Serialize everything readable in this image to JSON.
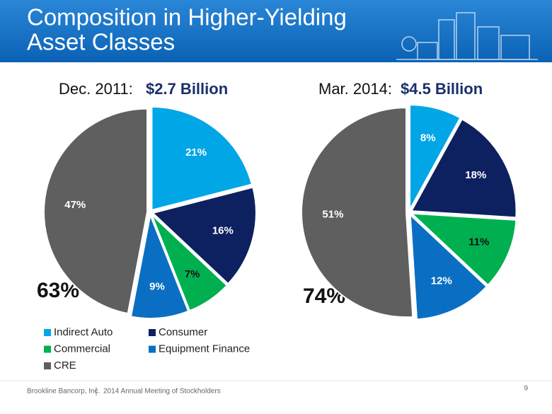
{
  "header": {
    "title_lines": [
      "Composition in Higher-Yielding",
      "Asset Classes"
    ]
  },
  "chart_data": [
    {
      "type": "pie",
      "period": "Dec. 2011:",
      "total": "$2.7 Billion",
      "categories": [
        "Indirect Auto",
        "Consumer",
        "Commercial",
        "Equipment Finance",
        "CRE"
      ],
      "values": [
        21,
        16,
        7,
        9,
        47
      ],
      "value_labels": [
        "21%",
        "16%",
        "7%",
        "9%",
        "47%"
      ],
      "colors": [
        "#00a6e6",
        "#0d2060",
        "#00b050",
        "#0a6fc2",
        "#5f5f5f"
      ],
      "annotation": "63%"
    },
    {
      "type": "pie",
      "period": "Mar. 2014:",
      "total": "$4.5 Billion",
      "categories": [
        "Indirect Auto",
        "Consumer",
        "Commercial",
        "Equipment Finance",
        "CRE"
      ],
      "values": [
        8,
        18,
        11,
        12,
        51
      ],
      "value_labels": [
        "8%",
        "18%",
        "11%",
        "12%",
        "51%"
      ],
      "colors": [
        "#00a6e6",
        "#0d2060",
        "#00b050",
        "#0a6fc2",
        "#5f5f5f"
      ],
      "annotation": "74%"
    }
  ],
  "footer": {
    "company": "Brookline Bancorp, Inc.",
    "event": "2014 Annual Meeting of Stockholders",
    "page": "9"
  }
}
